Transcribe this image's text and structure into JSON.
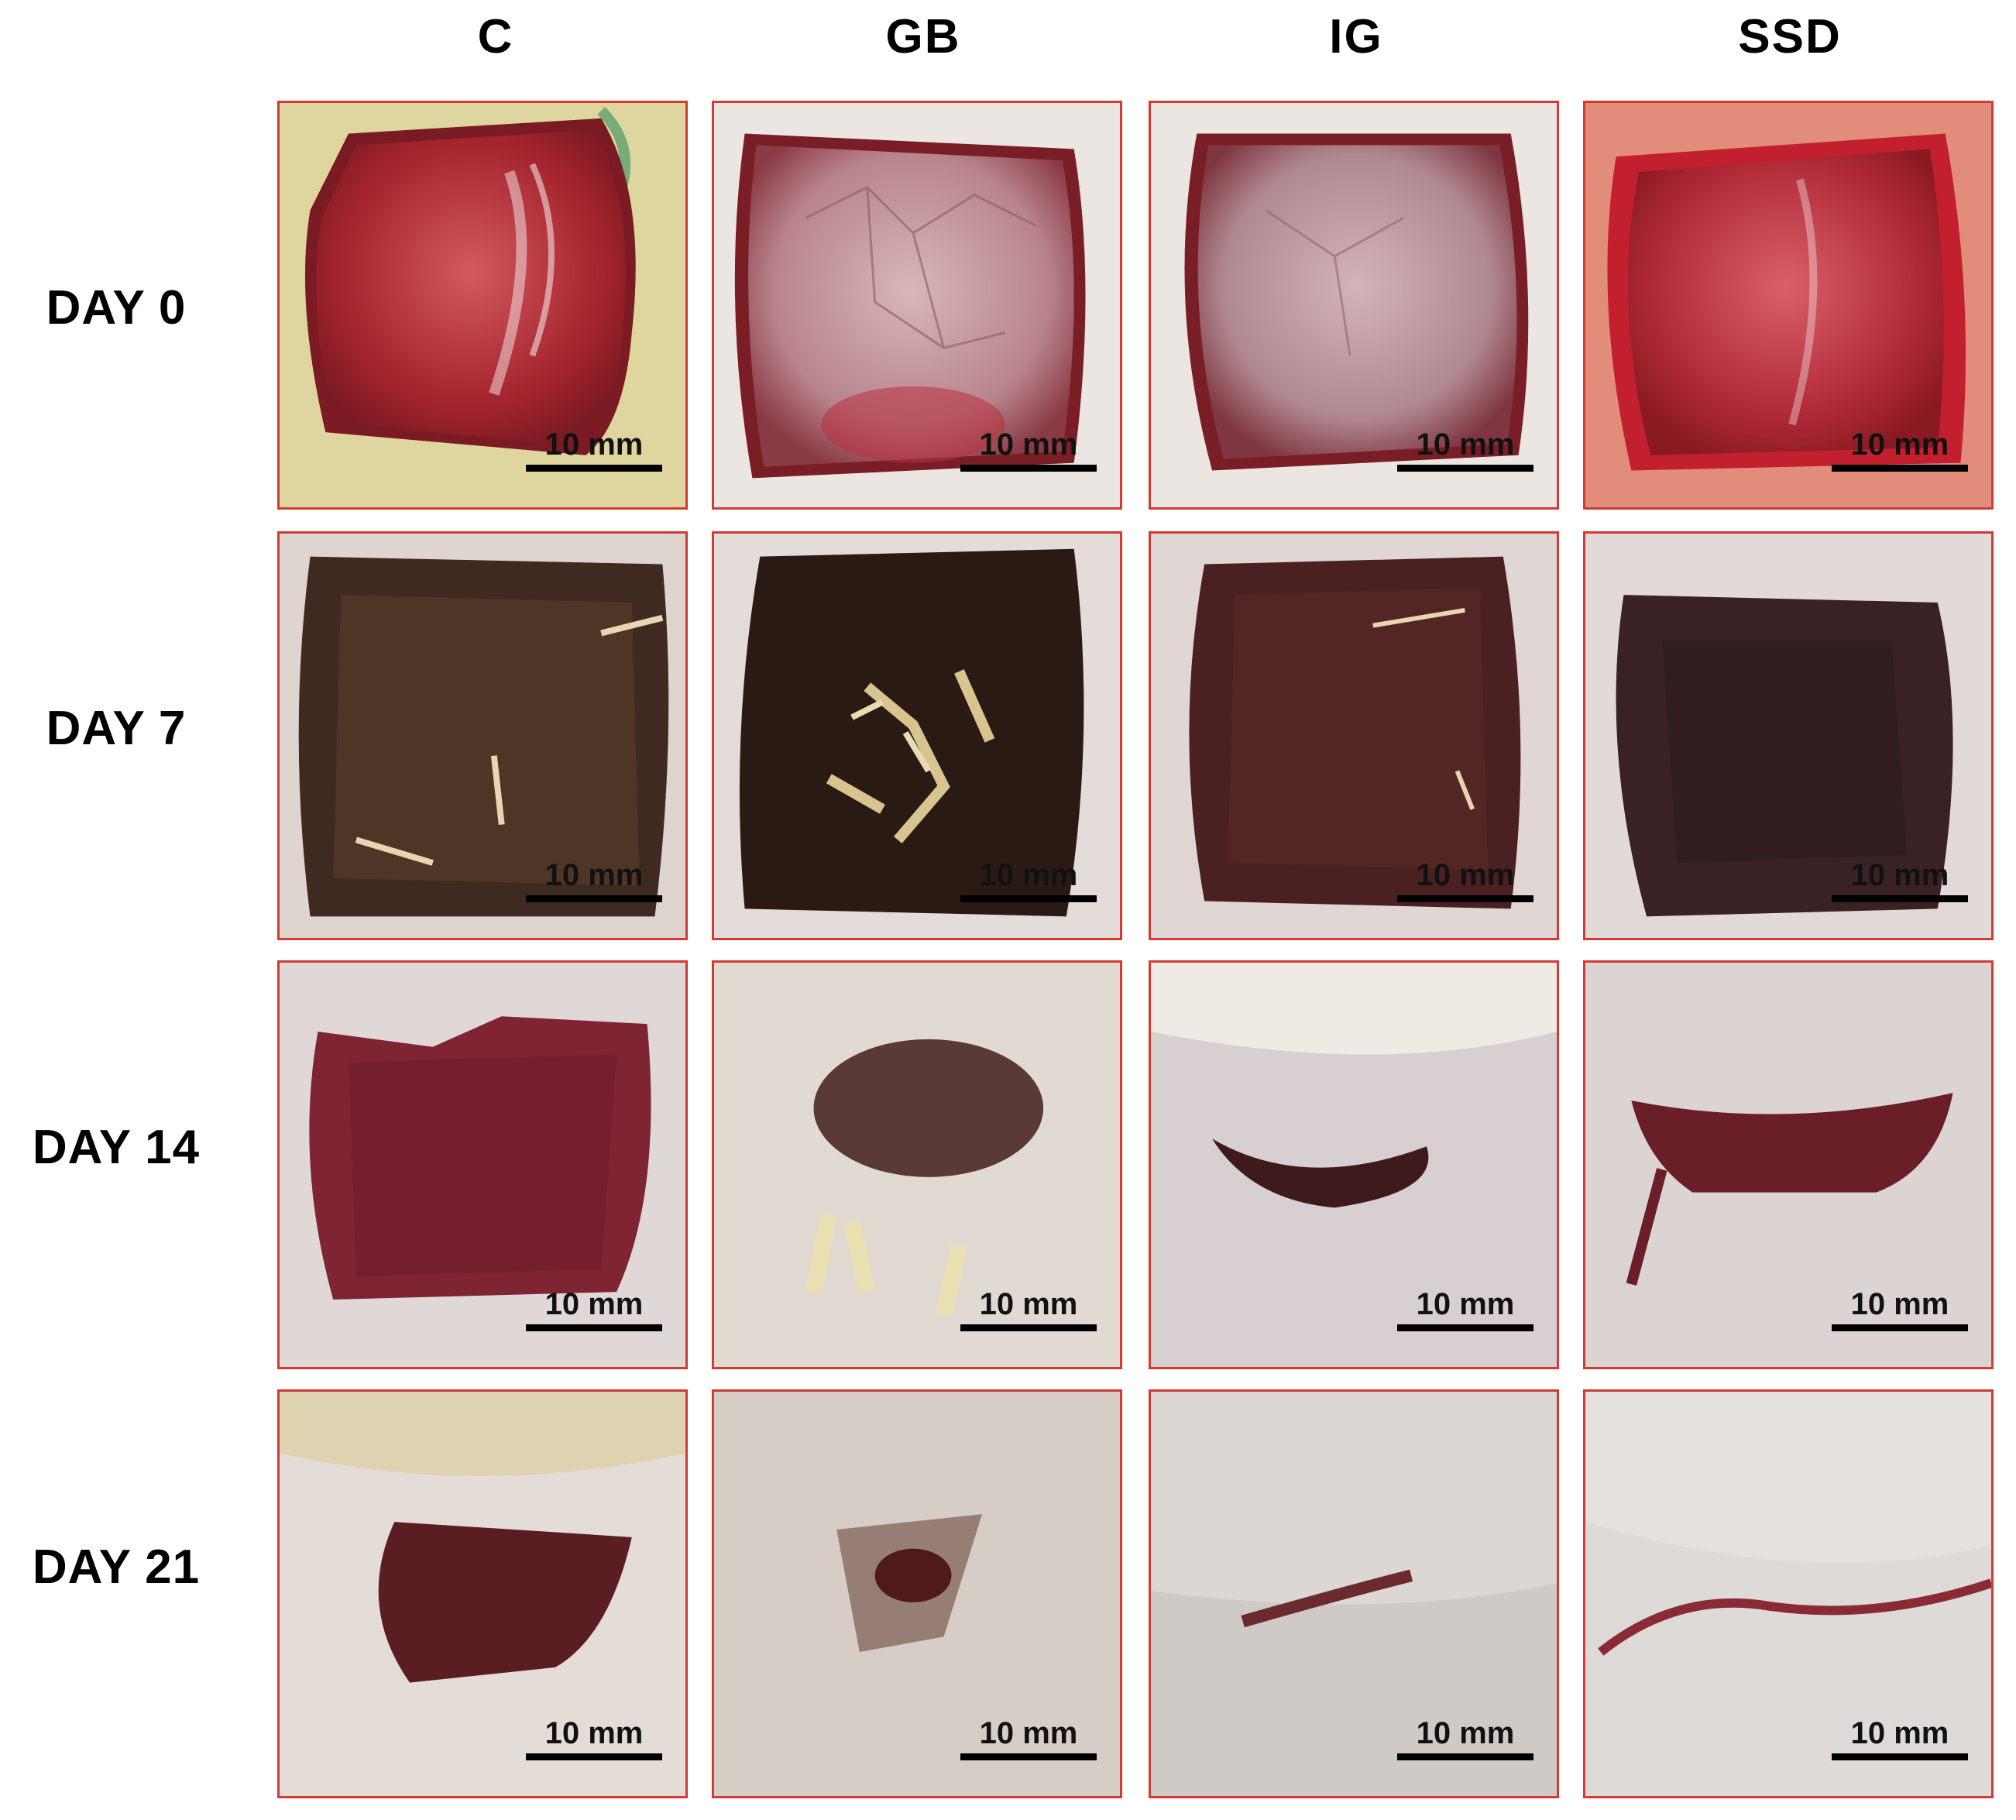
{
  "columns": [
    "C",
    "GB",
    "IG",
    "SSD"
  ],
  "rows": [
    "DAY 0",
    "DAY 7",
    "DAY 14",
    "DAY 21"
  ],
  "scale_bar_label": "10 mm",
  "colors": {
    "panel_border": "#d23a34",
    "fresh_wound": "#b0303a",
    "scab": "#3a2420",
    "healing_tissue": "#6e2430",
    "skin": "#e2dcd8",
    "fur": "#efeae4"
  },
  "panels": [
    {
      "row": "DAY 0",
      "column": "C",
      "scale": "10 mm"
    },
    {
      "row": "DAY 0",
      "column": "GB",
      "scale": "10 mm"
    },
    {
      "row": "DAY 0",
      "column": "IG",
      "scale": "10 mm"
    },
    {
      "row": "DAY 0",
      "column": "SSD",
      "scale": "10 mm"
    },
    {
      "row": "DAY 7",
      "column": "C",
      "scale": "10 mm"
    },
    {
      "row": "DAY 7",
      "column": "GB",
      "scale": "10 mm"
    },
    {
      "row": "DAY 7",
      "column": "IG",
      "scale": "10 mm"
    },
    {
      "row": "DAY 7",
      "column": "SSD",
      "scale": "10 mm"
    },
    {
      "row": "DAY 14",
      "column": "C",
      "scale": "10 mm"
    },
    {
      "row": "DAY 14",
      "column": "GB",
      "scale": "10 mm"
    },
    {
      "row": "DAY 14",
      "column": "IG",
      "scale": "10 mm"
    },
    {
      "row": "DAY 14",
      "column": "SSD",
      "scale": "10 mm"
    },
    {
      "row": "DAY 21",
      "column": "C",
      "scale": "10 mm"
    },
    {
      "row": "DAY 21",
      "column": "GB",
      "scale": "10 mm"
    },
    {
      "row": "DAY 21",
      "column": "IG",
      "scale": "10 mm"
    },
    {
      "row": "DAY 21",
      "column": "SSD",
      "scale": "10 mm"
    }
  ]
}
